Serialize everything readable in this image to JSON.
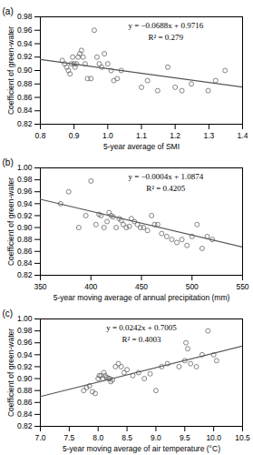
{
  "chart_data": [
    {
      "type": "scatter",
      "title": "(a)",
      "x_label": "5-year average of SMI",
      "y_label": "Coefficient of green-water",
      "xlim": [
        0.8,
        1.4
      ],
      "ylim": [
        0.82,
        0.98
      ],
      "xticks": [
        0.8,
        0.9,
        {
          "value": 1,
          "label": "1.0"
        },
        1.1,
        1.2,
        1.3,
        1.4
      ],
      "yticks": [
        0.82,
        0.84,
        0.86,
        0.88,
        {
          "value": 0.9,
          "label": "0.90"
        },
        0.92,
        0.94,
        0.96,
        0.98
      ],
      "annotations": [
        "y = −0.0688x + 0.9716",
        "R² = 0.279"
      ],
      "series": [
        {
          "type": "scatter",
          "marker": "circle",
          "color": "#666666",
          "x": [
            0.865,
            0.872,
            0.878,
            0.883,
            0.888,
            0.892,
            0.896,
            0.9,
            0.903,
            0.907,
            0.912,
            0.917,
            0.922,
            0.927,
            0.933,
            0.94,
            0.95,
            0.96,
            0.968,
            0.975,
            0.982,
            0.99,
            1.0,
            1.01,
            1.018,
            1.028,
            1.04,
            1.1,
            1.118,
            1.148,
            1.178,
            1.2,
            1.22,
            1.248,
            1.298,
            1.32,
            1.348
          ],
          "values": [
            0.915,
            0.91,
            0.905,
            0.9,
            0.895,
            0.91,
            0.92,
            0.91,
            0.905,
            0.91,
            0.92,
            0.925,
            0.93,
            0.92,
            0.91,
            0.888,
            0.888,
            0.96,
            0.92,
            0.91,
            0.905,
            0.925,
            0.91,
            0.9,
            0.885,
            0.888,
            0.9,
            0.875,
            0.885,
            0.87,
            0.905,
            0.875,
            0.87,
            0.88,
            0.87,
            0.885,
            0.9
          ]
        },
        {
          "type": "line",
          "color": "#555555",
          "x": [
            0.8,
            1.4
          ],
          "values": [
            0.91656,
            0.87528
          ]
        }
      ]
    },
    {
      "type": "scatter",
      "title": "(b)",
      "x_label": "5-year moving average of annual precipitation (mm)",
      "y_label": "Coefficient of green-water",
      "xlim": [
        350,
        550
      ],
      "ylim": [
        0.82,
        1.0
      ],
      "xticks": [
        350,
        400,
        450,
        500,
        550
      ],
      "yticks": [
        0.82,
        0.84,
        0.86,
        0.88,
        {
          "value": 0.9,
          "label": "0.90"
        },
        0.92,
        0.94,
        0.96,
        0.98,
        {
          "value": 1,
          "label": "1.00"
        }
      ],
      "annotations": [
        "y = −0.0004x + 1.0874",
        "R² = 0.4205"
      ],
      "series": [
        {
          "type": "scatter",
          "marker": "circle",
          "color": "#666666",
          "x": [
            370,
            378,
            388,
            395,
            400,
            405,
            408,
            410,
            413,
            416,
            418,
            420,
            422,
            425,
            428,
            430,
            432,
            435,
            438,
            440,
            443,
            446,
            449,
            452,
            456,
            460,
            463,
            466,
            470,
            475,
            480,
            485,
            490,
            495,
            500,
            505,
            510,
            515,
            520
          ],
          "values": [
            0.94,
            0.96,
            0.9,
            0.92,
            0.978,
            0.905,
            0.922,
            0.92,
            0.9,
            0.91,
            0.925,
            0.92,
            0.918,
            0.9,
            0.915,
            0.912,
            0.905,
            0.9,
            0.902,
            0.915,
            0.91,
            0.905,
            0.9,
            0.9,
            0.895,
            0.92,
            0.905,
            0.905,
            0.89,
            0.885,
            0.88,
            0.875,
            0.88,
            0.87,
            0.885,
            0.905,
            0.865,
            0.885,
            0.88
          ]
        },
        {
          "type": "line",
          "color": "#555555",
          "x": [
            350,
            550
          ],
          "values": [
            0.9474,
            0.8674
          ]
        }
      ]
    },
    {
      "type": "scatter",
      "title": "(c)",
      "x_label": "5-year moving average of air temperature (°C)",
      "y_label": "Coefficient of green-water",
      "xlim": [
        7.0,
        10.5
      ],
      "ylim": [
        0.82,
        1.0
      ],
      "xticks": [
        {
          "value": 7,
          "label": "7.0"
        },
        7.5,
        {
          "value": 8,
          "label": "8.0"
        },
        8.5,
        {
          "value": 9,
          "label": "9.0"
        },
        9.5,
        {
          "value": 10,
          "label": "10.0"
        },
        10.5
      ],
      "yticks": [
        0.82,
        0.84,
        0.86,
        0.88,
        {
          "value": 0.9,
          "label": "0.90"
        },
        0.92,
        0.94,
        0.96,
        0.98,
        {
          "value": 1,
          "label": "1.00"
        }
      ],
      "annotations": [
        "y = 0.0242x + 0.7005",
        "R² = 0.4003"
      ],
      "series": [
        {
          "type": "scatter",
          "marker": "circle",
          "color": "#666666",
          "x": [
            7.75,
            7.8,
            7.85,
            7.9,
            7.95,
            8.0,
            8.02,
            8.05,
            8.08,
            8.1,
            8.12,
            8.15,
            8.18,
            8.2,
            8.22,
            8.25,
            8.3,
            8.35,
            8.4,
            8.45,
            8.5,
            8.6,
            8.7,
            8.8,
            8.9,
            9.0,
            9.1,
            9.2,
            9.4,
            9.5,
            9.52,
            9.55,
            9.6,
            9.7,
            9.8,
            9.9,
            10.0,
            10.05
          ],
          "values": [
            0.88,
            0.885,
            0.888,
            0.878,
            0.875,
            0.9,
            0.905,
            0.905,
            0.9,
            0.91,
            0.905,
            0.902,
            0.9,
            0.9,
            0.895,
            0.898,
            0.92,
            0.925,
            0.92,
            0.91,
            0.915,
            0.905,
            0.91,
            0.9,
            0.908,
            0.88,
            0.92,
            0.925,
            0.92,
            0.93,
            0.96,
            0.95,
            0.925,
            0.92,
            0.94,
            0.98,
            0.94,
            0.93
          ]
        },
        {
          "type": "line",
          "color": "#555555",
          "x": [
            7.0,
            10.5
          ],
          "values": [
            0.8699,
            0.9546
          ]
        }
      ]
    }
  ]
}
